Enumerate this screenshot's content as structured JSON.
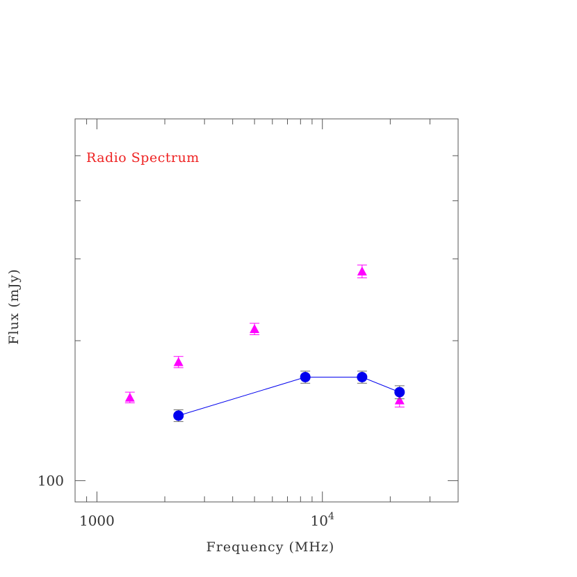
{
  "chart_data": {
    "type": "scatter",
    "title": "Radio Spectrum",
    "xlabel": "Frequency (MHz)",
    "ylabel": "Flux (mJy)",
    "xscale": "log",
    "yscale": "log",
    "xlim": [
      800,
      40000
    ],
    "ylim": [
      90,
      600
    ],
    "x_tick_labels": [
      {
        "value": 1000,
        "base": "1000",
        "exp": ""
      },
      {
        "value": 10000,
        "base": "10",
        "exp": "4"
      }
    ],
    "y_tick_labels": [
      {
        "value": 100,
        "label": "100"
      }
    ],
    "grid": false,
    "series": [
      {
        "marker": "triangle",
        "color": "#ff00ff",
        "connected": false,
        "points": [
          {
            "x": 1400,
            "y": 151,
            "err": 4
          },
          {
            "x": 2300,
            "y": 180,
            "err": 5
          },
          {
            "x": 5000,
            "y": 212,
            "err": 6
          },
          {
            "x": 15000,
            "y": 282,
            "err": 9
          },
          {
            "x": 22000,
            "y": 149,
            "err": 5
          }
        ]
      },
      {
        "marker": "circle",
        "color": "#0000ee",
        "connected": true,
        "points": [
          {
            "x": 2300,
            "y": 138,
            "err": 4
          },
          {
            "x": 8400,
            "y": 167,
            "err": 5
          },
          {
            "x": 15000,
            "y": 167,
            "err": 5
          },
          {
            "x": 22000,
            "y": 155,
            "err": 5
          }
        ]
      }
    ],
    "colors": {
      "title": "#ee2222",
      "axis": "#555555",
      "errorbar": "#666666"
    }
  }
}
